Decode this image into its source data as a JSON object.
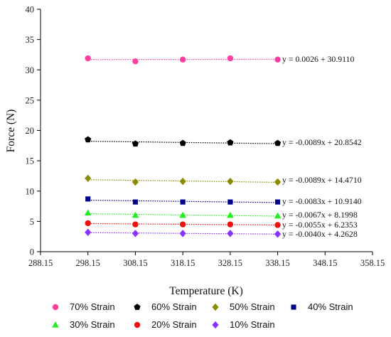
{
  "chart_data": {
    "type": "scatter",
    "title": "",
    "xlabel": "Temperature (K)",
    "ylabel": "Force (N)",
    "xlim": [
      288.15,
      358.15
    ],
    "ylim": [
      0,
      40
    ],
    "x_ticks": [
      "288.15",
      "298.15",
      "308.15",
      "318.15",
      "328.15",
      "338.15",
      "348.15",
      "358.15"
    ],
    "y_ticks": [
      "0",
      "5",
      "10",
      "15",
      "20",
      "25",
      "30",
      "35",
      "40"
    ],
    "grid": false,
    "legend_position": "bottom",
    "x": [
      298.15,
      308.15,
      318.15,
      328.15,
      338.15
    ],
    "series": [
      {
        "name": "70% Strain",
        "color": "#ff3fa0",
        "marker": "circle",
        "values": [
          31.9,
          31.4,
          31.7,
          31.9,
          31.7
        ],
        "trend": {
          "slope": 0.0026,
          "intercept": 30.911,
          "equation": "y = 0.0026 + 30.9110"
        }
      },
      {
        "name": "60% Strain",
        "color": "#000000",
        "marker": "pentagon",
        "values": [
          18.5,
          17.8,
          17.9,
          18.0,
          17.9
        ],
        "trend": {
          "slope": -0.0089,
          "intercept": 20.8542,
          "equation": "y = -0.0089x + 20.8542"
        }
      },
      {
        "name": "50% Strain",
        "color": "#8b8b00",
        "marker": "diamond",
        "values": [
          12.1,
          11.5,
          11.6,
          11.6,
          11.5
        ],
        "trend": {
          "slope": -0.0089,
          "intercept": 14.471,
          "equation": "y = -0.0089x + 14.4710"
        }
      },
      {
        "name": "40% Strain",
        "color": "#00008b",
        "marker": "square",
        "values": [
          8.7,
          8.2,
          8.2,
          8.2,
          8.2
        ],
        "trend": {
          "slope": -0.0083,
          "intercept": 10.914,
          "equation": "y = -0.0083x + 10.9140"
        }
      },
      {
        "name": "30% Strain",
        "color": "#22ee22",
        "marker": "triangle",
        "values": [
          6.4,
          6.0,
          6.0,
          6.0,
          5.9
        ],
        "trend": {
          "slope": -0.0067,
          "intercept": 8.1998,
          "equation": "y = -0.0067x + 8.1998"
        }
      },
      {
        "name": "20% Strain",
        "color": "#ee1111",
        "marker": "circle",
        "values": [
          4.7,
          4.5,
          4.5,
          4.5,
          4.4
        ],
        "trend": {
          "slope": -0.0055,
          "intercept": 6.2353,
          "equation": "y = -0.0055x + 6.2353"
        }
      },
      {
        "name": "10% Strain",
        "color": "#8833ff",
        "marker": "diamond",
        "values": [
          3.2,
          3.0,
          3.0,
          3.0,
          2.9
        ],
        "trend": {
          "slope": -0.004,
          "intercept": 4.2628,
          "equation": "y = -0.0040x + 4.2628"
        }
      }
    ]
  }
}
